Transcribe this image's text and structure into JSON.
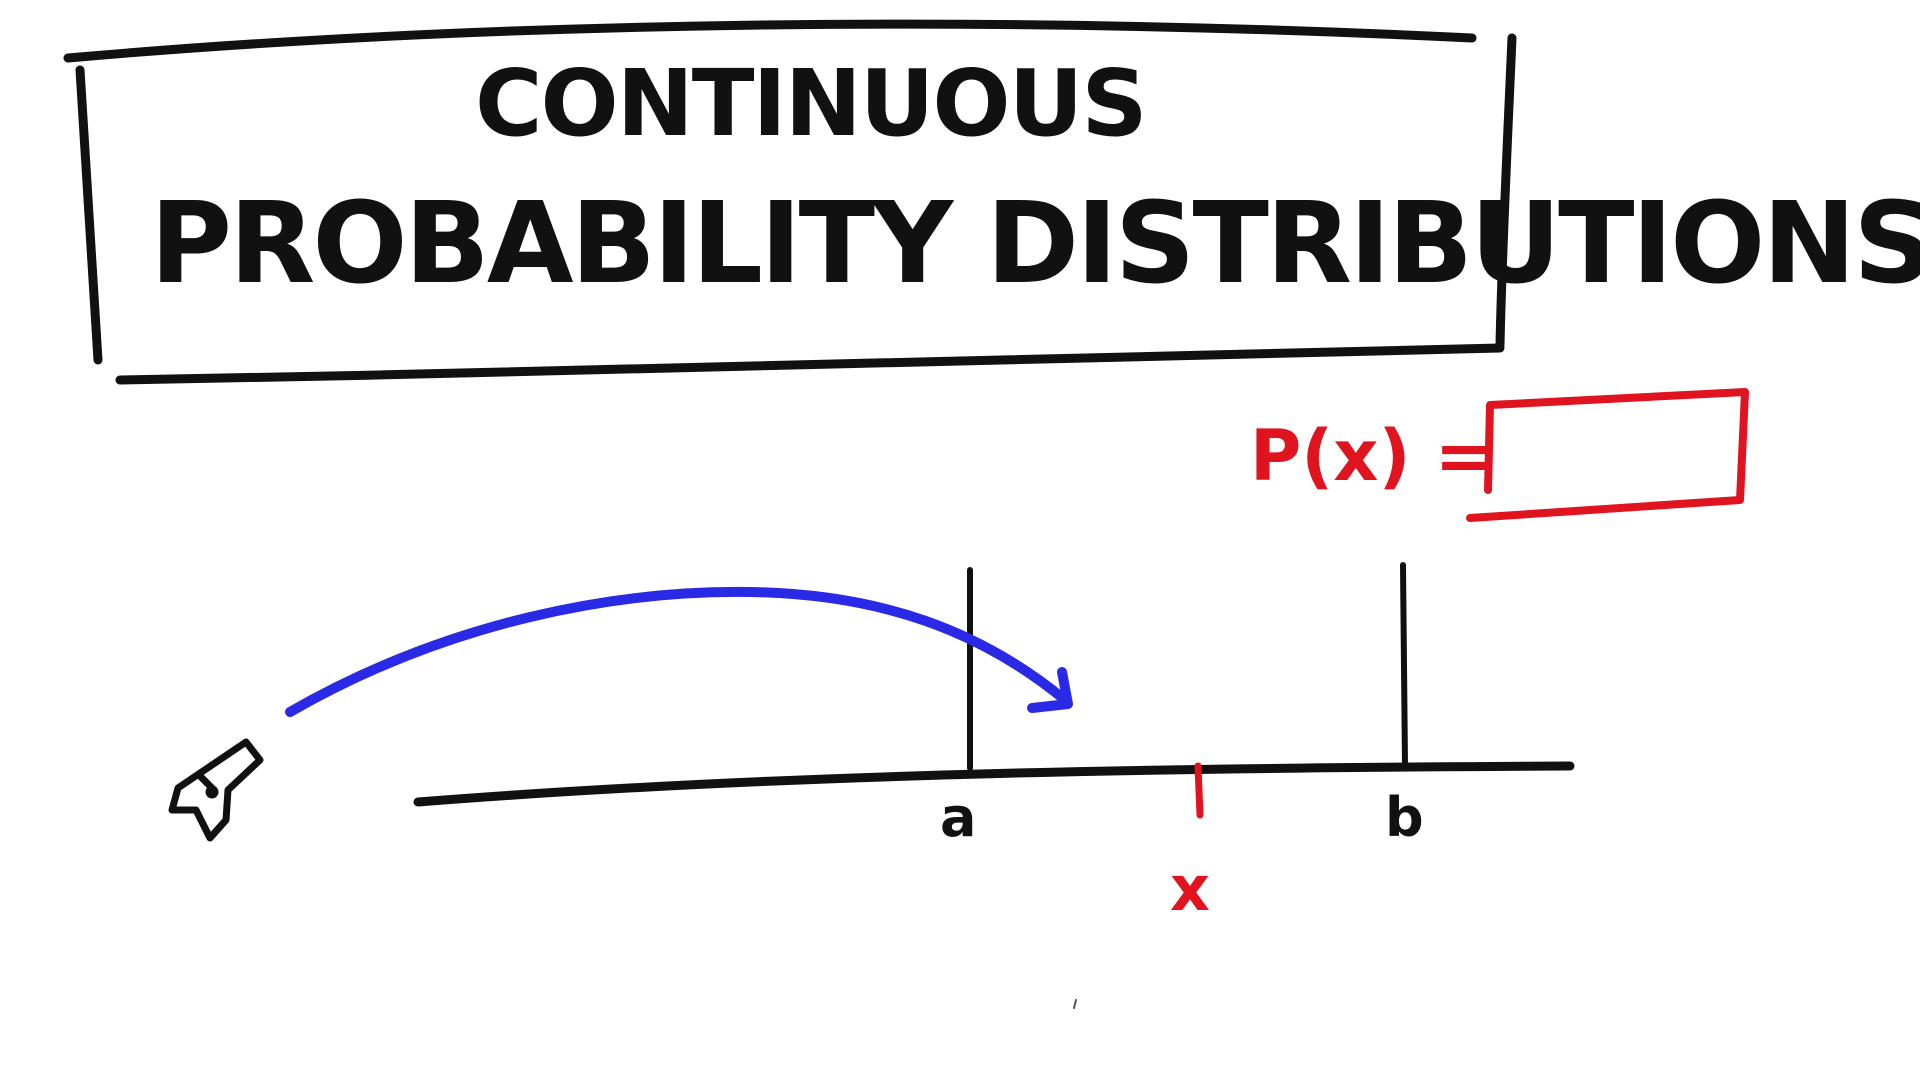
{
  "title": {
    "line1": "CONTINUOUS",
    "line2": "PROBABILITY DISTRIBUTIONS"
  },
  "formula": {
    "label": "P(x) ="
  },
  "axis": {
    "label_a": "a",
    "label_b": "b",
    "label_x": "x"
  },
  "colors": {
    "ink": "#111111",
    "red": "#e0141e",
    "blue": "#2a2ae6"
  },
  "icons": {
    "launcher": "cannon-icon"
  }
}
